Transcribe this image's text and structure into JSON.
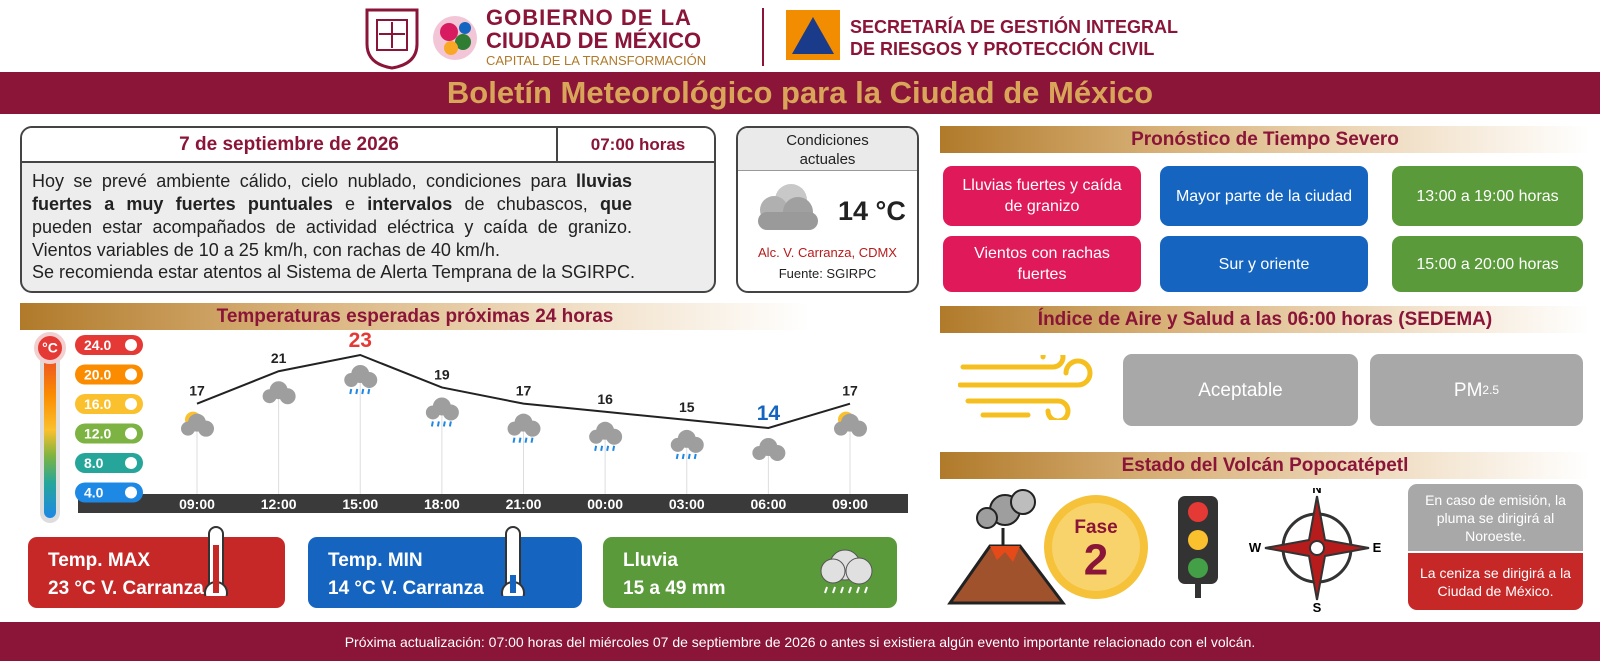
{
  "header": {
    "gov_line1": "GOBIERNO DE LA",
    "gov_line2": "CIUDAD DE MÉXICO",
    "gov_line3": "CAPITAL DE LA TRANSFORMACIÓN",
    "sec_line1": "SECRETARÍA DE GESTIÓN INTEGRAL",
    "sec_line2": "DE RIESGOS Y PROTECCIÓN CIVIL"
  },
  "title": "Boletín Meteorológico para la Ciudad de México",
  "bulletin": {
    "date": "7 de septiembre de 2026",
    "time": "07:00 horas",
    "text": [
      {
        "text": "Hoy se prevé ambiente cálido, cielo nublado, condiciones para ",
        "bold": false
      },
      {
        "text": "lluvias fuertes a muy fuertes puntuales",
        "bold": true
      },
      {
        "text": " e ",
        "bold": false
      },
      {
        "text": "intervalos",
        "bold": true
      },
      {
        "text": " de chubascos, ",
        "bold": false
      },
      {
        "text": "que",
        "bold": true
      },
      {
        "text": " pueden estar acompañados de actividad eléctrica y caída de granizo. Vientos variables de 10 a 25 km/h, con rachas de 40 km/h.",
        "bold": false
      }
    ],
    "note": "Se recomienda estar atentos al Sistema de Alerta Temprana de la SGIRPC."
  },
  "current": {
    "title": "Condiciones actuales",
    "temperature": "14 °C",
    "location": "Alc. V. Carranza, CDMX",
    "source": "Fuente: SGIRPC"
  },
  "severe": {
    "title": "Pronóstico de Tiempo Severo",
    "rows": [
      [
        "Lluvias fuertes y caída de granizo",
        "Mayor parte de la ciudad",
        "13:00 a 19:00 horas"
      ],
      [
        "Vientos con rachas fuertes",
        "Sur y oriente",
        "15:00 a 20:00 horas"
      ]
    ]
  },
  "chart_data": {
    "type": "line",
    "title": "Temperaturas esperadas próximas 24 horas",
    "unit": "°C",
    "scale": [
      "24.0",
      "20.0",
      "16.0",
      "12.0",
      "8.0",
      "4.0"
    ],
    "categories": [
      "09:00",
      "12:00",
      "15:00",
      "18:00",
      "21:00",
      "00:00",
      "03:00",
      "06:00",
      "09:00"
    ],
    "values": [
      17,
      21,
      23,
      19,
      17,
      16,
      15,
      14,
      17
    ],
    "color": "#222222"
  },
  "summary": [
    {
      "label": "Temp. MAX",
      "text": "23 °C V. Carranza"
    },
    {
      "label": "Temp. MIN",
      "text": "14 °C  V. Carranza"
    },
    {
      "label": "Lluvia",
      "text": "15 a 49 mm"
    }
  ],
  "air": {
    "title": "Índice de Aire y Salud a las 06:00 horas (SEDEMA)",
    "quality": "Aceptable",
    "pollutant": "PM",
    "pollutant_sub": "2.5"
  },
  "volcano": {
    "title": "Estado del Volcán Popocatépetl",
    "phase_label": "Fase",
    "phase": "2",
    "compass": [
      "N",
      "E",
      "S",
      "W"
    ],
    "plume": "En caso de emisión, la pluma se dirigirá al Noroeste.",
    "ash": "La ceniza se dirigirá a la Ciudad de México."
  },
  "footer": "Próxima actualización: 07:00 horas del miércoles 07 de septiembre de 2026 o antes si existiera algún evento importante relacionado con el volcán."
}
